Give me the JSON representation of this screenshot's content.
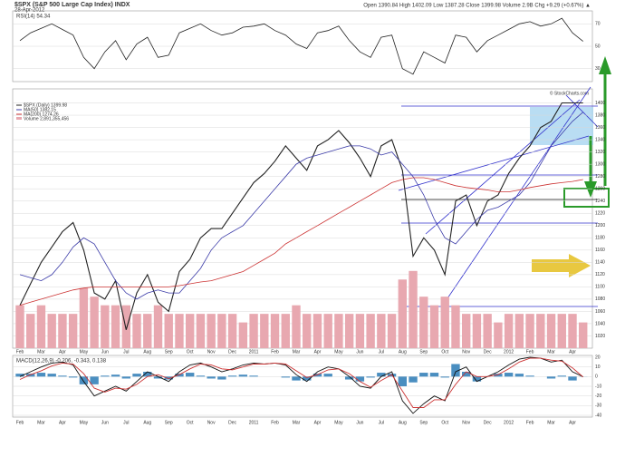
{
  "chart_data": {
    "type": "line",
    "title": "$SPX (S&P 500 Large Cap Index) INDX",
    "subtitle": "28-Apr-2012",
    "quote": "Open 1390.84 High 1402.09 Low 1387.28 Close 1399.98 Volume 2.9B Chg +9.29 (+0.67%) ▲",
    "watermark": "© StockCharts.com",
    "categories": [
      "Feb",
      null,
      "Mar",
      null,
      "Apr",
      null,
      "May",
      null,
      "Jun",
      null,
      "Jul",
      null,
      "Aug",
      null,
      "Sep",
      null,
      "Oct",
      null,
      "Nov",
      null,
      "Dec",
      null,
      "2011",
      null,
      "Feb",
      null,
      "Mar",
      null,
      "Apr",
      null,
      "May",
      null,
      "Jun",
      null,
      "Jul",
      null,
      "Aug",
      null,
      "Sep",
      null,
      "Oct",
      null,
      "Nov",
      null,
      "Dec",
      null,
      "2012",
      null,
      "Feb",
      null,
      "Mar",
      null,
      "Apr",
      null
    ],
    "price": {
      "ylim": [
        1000,
        1420
      ],
      "yticks": [
        1020,
        1040,
        1060,
        1080,
        1100,
        1120,
        1140,
        1160,
        1180,
        1200,
        1220,
        1240,
        1260,
        1280,
        1300,
        1320,
        1340,
        1360,
        1380,
        1400
      ],
      "series": [
        {
          "name": "$SPX (Daily) 1399.98",
          "color": "#222222",
          "values": [
            1070,
            1105,
            1140,
            1165,
            1190,
            1205,
            1160,
            1090,
            1080,
            1110,
            1030,
            1090,
            1120,
            1075,
            1060,
            1125,
            1145,
            1180,
            1195,
            1195,
            1220,
            1245,
            1270,
            1285,
            1305,
            1330,
            1310,
            1290,
            1330,
            1340,
            1355,
            1335,
            1310,
            1280,
            1330,
            1340,
            1290,
            1150,
            1180,
            1160,
            1120,
            1240,
            1250,
            1200,
            1240,
            1250,
            1285,
            1310,
            1330,
            1360,
            1370,
            1400,
            1400,
            1399.98
          ]
        },
        {
          "name": "MA(50) 1382.15",
          "color": "#3b3ba8",
          "values": [
            1120,
            1115,
            1110,
            1120,
            1140,
            1165,
            1180,
            1170,
            1140,
            1110,
            1090,
            1080,
            1090,
            1095,
            1090,
            1090,
            1110,
            1130,
            1160,
            1180,
            1190,
            1200,
            1220,
            1240,
            1260,
            1280,
            1300,
            1310,
            1315,
            1320,
            1325,
            1330,
            1330,
            1325,
            1315,
            1320,
            1300,
            1280,
            1250,
            1210,
            1180,
            1170,
            1190,
            1210,
            1225,
            1230,
            1240,
            1250,
            1270,
            1300,
            1330,
            1350,
            1370,
            1385
          ]
        },
        {
          "name": "MA(200) 1274.26",
          "color": "#cc3333",
          "values": [
            1070,
            1075,
            1080,
            1085,
            1090,
            1095,
            1098,
            1100,
            1100,
            1100,
            1100,
            1100,
            1100,
            1100,
            1100,
            1102,
            1105,
            1108,
            1110,
            1115,
            1120,
            1125,
            1135,
            1145,
            1155,
            1170,
            1180,
            1190,
            1200,
            1210,
            1220,
            1230,
            1240,
            1250,
            1260,
            1270,
            1275,
            1278,
            1278,
            1275,
            1270,
            1265,
            1262,
            1260,
            1258,
            1255,
            1255,
            1258,
            1262,
            1265,
            1268,
            1270,
            1272,
            1275
          ]
        }
      ],
      "volume": {
        "name": "Volume 2,891,355,456",
        "color": "#e8a8b0",
        "vlim": [
          0,
          30
        ],
        "values": [
          5,
          4,
          5,
          4,
          4,
          4,
          7,
          6,
          5,
          5,
          5,
          4,
          4,
          5,
          4,
          4,
          4,
          4,
          4,
          4,
          4,
          3,
          4,
          4,
          4,
          4,
          5,
          4,
          4,
          4,
          4,
          4,
          4,
          4,
          4,
          4,
          8,
          9,
          6,
          5,
          6,
          5,
          4,
          4,
          4,
          3,
          4,
          4,
          4,
          4,
          4,
          4,
          4,
          3
        ]
      }
    },
    "rsi": {
      "name": "RSI(14) 54.34",
      "color": "#222222",
      "ylim": [
        20,
        80
      ],
      "yticks": [
        30,
        50,
        70
      ],
      "values": [
        55,
        62,
        66,
        70,
        65,
        60,
        40,
        30,
        45,
        55,
        38,
        52,
        58,
        40,
        42,
        62,
        66,
        70,
        64,
        60,
        62,
        67,
        68,
        70,
        64,
        60,
        52,
        48,
        62,
        64,
        68,
        55,
        45,
        40,
        58,
        60,
        30,
        25,
        45,
        40,
        35,
        60,
        58,
        45,
        55,
        60,
        65,
        70,
        72,
        68,
        70,
        75,
        62,
        54.34
      ]
    },
    "macd": {
      "name": "MACD(12,26,9) -0.206, -0.343, 0.138",
      "ylim": [
        -40,
        20
      ],
      "yticks": [
        -40,
        -30,
        -20,
        -10,
        0,
        10,
        20
      ],
      "series": [
        {
          "name": "MACD",
          "color": "#111111",
          "values": [
            0,
            5,
            10,
            14,
            15,
            12,
            -5,
            -20,
            -15,
            -10,
            -15,
            -5,
            5,
            0,
            -5,
            5,
            12,
            14,
            10,
            5,
            8,
            12,
            14,
            13,
            14,
            12,
            2,
            -5,
            5,
            10,
            8,
            0,
            -10,
            -12,
            0,
            5,
            -25,
            -38,
            -28,
            -20,
            -25,
            5,
            10,
            -5,
            0,
            5,
            12,
            18,
            20,
            19,
            15,
            17,
            5,
            -0.206
          ]
        },
        {
          "name": "Signal",
          "color": "#cc3333",
          "values": [
            -3,
            2,
            6,
            11,
            14,
            13,
            3,
            -12,
            -16,
            -12,
            -13,
            -8,
            0,
            2,
            -2,
            2,
            8,
            13,
            12,
            8,
            7,
            10,
            13,
            13,
            14,
            13,
            6,
            -1,
            2,
            7,
            8,
            3,
            -5,
            -11,
            -4,
            2,
            -15,
            -32,
            -32,
            -24,
            -24,
            -8,
            5,
            0,
            0,
            2,
            8,
            15,
            19,
            19,
            17,
            16,
            9,
            -0.343
          ]
        }
      ],
      "histogram": {
        "color": "#4a8ec0",
        "values": [
          3,
          3,
          4,
          3,
          1,
          -1,
          -8,
          -8,
          1,
          2,
          -2,
          3,
          5,
          -2,
          -3,
          3,
          4,
          1,
          -2,
          -3,
          1,
          2,
          1,
          0,
          0,
          -1,
          -4,
          -4,
          3,
          3,
          0,
          -3,
          -5,
          -1,
          4,
          3,
          -10,
          -6,
          4,
          4,
          -1,
          13,
          5,
          -5,
          0,
          3,
          4,
          3,
          1,
          0,
          -2,
          1,
          -4,
          0.138
        ]
      }
    }
  }
}
